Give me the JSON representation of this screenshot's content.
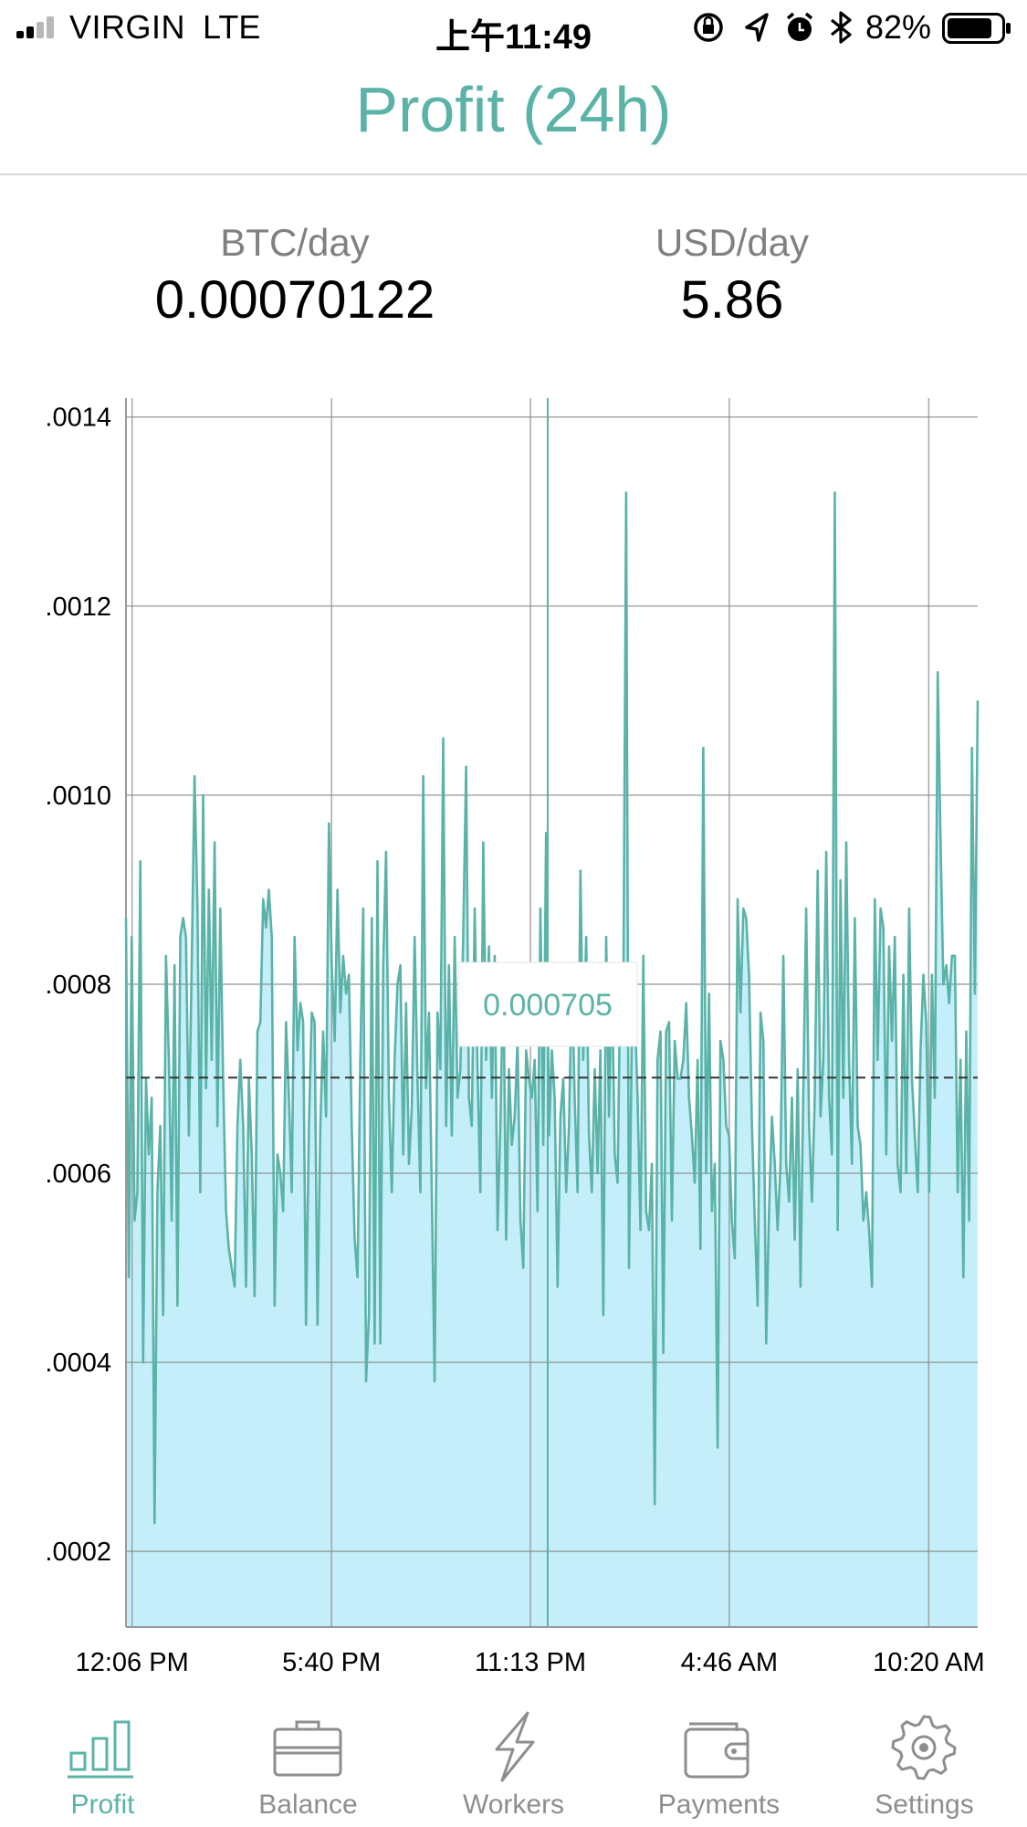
{
  "status_bar": {
    "carrier": "VIRGIN",
    "network": "LTE",
    "time": "上午11:49",
    "battery_percent": "82%",
    "battery_level": 0.82,
    "icons": [
      "orientation-lock-icon",
      "location-icon",
      "alarm-icon",
      "bluetooth-icon"
    ]
  },
  "header": {
    "title": "Profit (24h)"
  },
  "stats": {
    "btc": {
      "label": "BTC/day",
      "value": "0.00070122"
    },
    "usd": {
      "label": "USD/day",
      "value": "5.86"
    }
  },
  "colors": {
    "accent": "#5bb3a7",
    "fill": "#c4eefa",
    "grid": "#8a8a8a",
    "inactive": "#8e8e8e"
  },
  "chart_data": {
    "type": "line",
    "title": "",
    "xlabel": "",
    "ylabel": "",
    "ylim": [
      0.00012,
      0.00142
    ],
    "yticks": [
      ".0002",
      ".0004",
      ".0006",
      ".0008",
      ".0010",
      ".0012",
      ".0014"
    ],
    "ytick_values": [
      0.0002,
      0.0004,
      0.0006,
      0.0008,
      0.001,
      0.0012,
      0.0014
    ],
    "xticks": [
      "12:06 PM",
      "5:40 PM",
      "11:13 PM",
      "4:46 AM",
      "10:20 AM"
    ],
    "xtick_hours": [
      0,
      5.5667,
      11.1167,
      16.6667,
      22.2333
    ],
    "xlim_hours": [
      -0.17,
      23.6
    ],
    "average": 0.00070122,
    "selected": {
      "hour": 11.6,
      "label": "0.000705"
    },
    "grid": true,
    "legend": "none",
    "series": [
      {
        "values": [
          0.00087,
          0.00049,
          0.00085,
          0.00055,
          0.00058,
          0.00093,
          0.0004,
          0.0007,
          0.00062,
          0.00068,
          0.00023,
          0.00058,
          0.00065,
          0.00045,
          0.00083,
          0.00072,
          0.00055,
          0.00082,
          0.00046,
          0.00085,
          0.00087,
          0.00085,
          0.00064,
          0.00082,
          0.00102,
          0.00088,
          0.00058,
          0.001,
          0.00069,
          0.0009,
          0.00072,
          0.00095,
          0.00065,
          0.00088,
          0.0007,
          0.00056,
          0.00052,
          0.0005,
          0.00048,
          0.00065,
          0.00072,
          0.00065,
          0.00048,
          0.0007,
          0.00062,
          0.00047,
          0.00075,
          0.00076,
          0.00089,
          0.00086,
          0.0009,
          0.00085,
          0.00046,
          0.00062,
          0.0006,
          0.00056,
          0.00076,
          0.00068,
          0.00058,
          0.00085,
          0.00073,
          0.00078,
          0.00076,
          0.00044,
          0.00065,
          0.00077,
          0.00076,
          0.00044,
          0.00065,
          0.00075,
          0.00066,
          0.00097,
          0.00082,
          0.00074,
          0.0009,
          0.00077,
          0.00083,
          0.00079,
          0.00081,
          0.00065,
          0.00053,
          0.00049,
          0.00072,
          0.00088,
          0.00038,
          0.00045,
          0.00087,
          0.00042,
          0.00093,
          0.00042,
          0.00082,
          0.00094,
          0.00068,
          0.00058,
          0.00072,
          0.0008,
          0.00082,
          0.00062,
          0.00078,
          0.00061,
          0.00067,
          0.00085,
          0.0007,
          0.00058,
          0.00102,
          0.00069,
          0.00077,
          0.00058,
          0.00038,
          0.00077,
          0.00071,
          0.00106,
          0.00065,
          0.00082,
          0.00064,
          0.00085,
          0.00068,
          0.00071,
          0.00085,
          0.00103,
          0.00068,
          0.00065,
          0.00088,
          0.00071,
          0.00058,
          0.00095,
          0.00072,
          0.00084,
          0.00068,
          0.00083,
          0.00054,
          0.00065,
          0.00082,
          0.00053,
          0.00071,
          0.00063,
          0.00066,
          0.00074,
          0.00055,
          0.0005,
          0.00073,
          0.0007,
          0.00068,
          0.00072,
          0.00056,
          0.00088,
          0.00063,
          0.00096,
          0.00064,
          0.00073,
          0.00068,
          0.00048,
          0.00066,
          0.0007,
          0.00058,
          0.00065,
          0.00081,
          0.00068,
          0.00058,
          0.00092,
          0.00072,
          0.00085,
          0.00064,
          0.00058,
          0.00071,
          0.0006,
          0.00073,
          0.00045,
          0.00085,
          0.00066,
          0.00082,
          0.00062,
          0.00059,
          0.00081,
          0.00078,
          0.00132,
          0.0005,
          0.00075,
          0.00078,
          0.00068,
          0.00054,
          0.00083,
          0.00056,
          0.00054,
          0.00061,
          0.00025,
          0.00072,
          0.00075,
          0.00041,
          0.00075,
          0.00076,
          0.00055,
          0.00074,
          0.0007,
          0.0007,
          0.00072,
          0.00078,
          0.00068,
          0.00064,
          0.00059,
          0.00072,
          0.00052,
          0.00105,
          0.0006,
          0.00079,
          0.00056,
          0.00061,
          0.00031,
          0.00074,
          0.00072,
          0.00065,
          0.00064,
          0.00055,
          0.00051,
          0.00089,
          0.00077,
          0.00088,
          0.00087,
          0.00081,
          0.00065,
          0.00055,
          0.00046,
          0.00077,
          0.00074,
          0.00042,
          0.00056,
          0.00066,
          0.00061,
          0.00054,
          0.00061,
          0.00083,
          0.00061,
          0.00057,
          0.00068,
          0.00053,
          0.00071,
          0.00048,
          0.00069,
          0.00088,
          0.00065,
          0.00057,
          0.00068,
          0.00092,
          0.00066,
          0.00072,
          0.00094,
          0.00068,
          0.00062,
          0.00132,
          0.00054,
          0.00091,
          0.00068,
          0.00095,
          0.00072,
          0.00061,
          0.00087,
          0.00065,
          0.00063,
          0.00055,
          0.00058,
          0.00054,
          0.00048,
          0.00089,
          0.00072,
          0.00088,
          0.00086,
          0.00062,
          0.00084,
          0.00074,
          0.00085,
          0.00061,
          0.00058,
          0.00081,
          0.0006,
          0.00088,
          0.0007,
          0.00064,
          0.00058,
          0.00073,
          0.00081,
          0.00076,
          0.00058,
          0.00081,
          0.00068,
          0.00113,
          0.00095,
          0.0008,
          0.00082,
          0.00078,
          0.00083,
          0.00083,
          0.00058,
          0.00072,
          0.00049,
          0.00075,
          0.00055,
          0.00105,
          0.00079,
          0.0011
        ]
      }
    ]
  },
  "tabs": [
    {
      "key": "profit",
      "label": "Profit",
      "icon": "bar-chart-icon",
      "active": true
    },
    {
      "key": "balance",
      "label": "Balance",
      "icon": "briefcase-icon",
      "active": false
    },
    {
      "key": "workers",
      "label": "Workers",
      "icon": "lightning-icon",
      "active": false
    },
    {
      "key": "payments",
      "label": "Payments",
      "icon": "wallet-icon",
      "active": false
    },
    {
      "key": "settings",
      "label": "Settings",
      "icon": "gear-icon",
      "active": false
    }
  ]
}
